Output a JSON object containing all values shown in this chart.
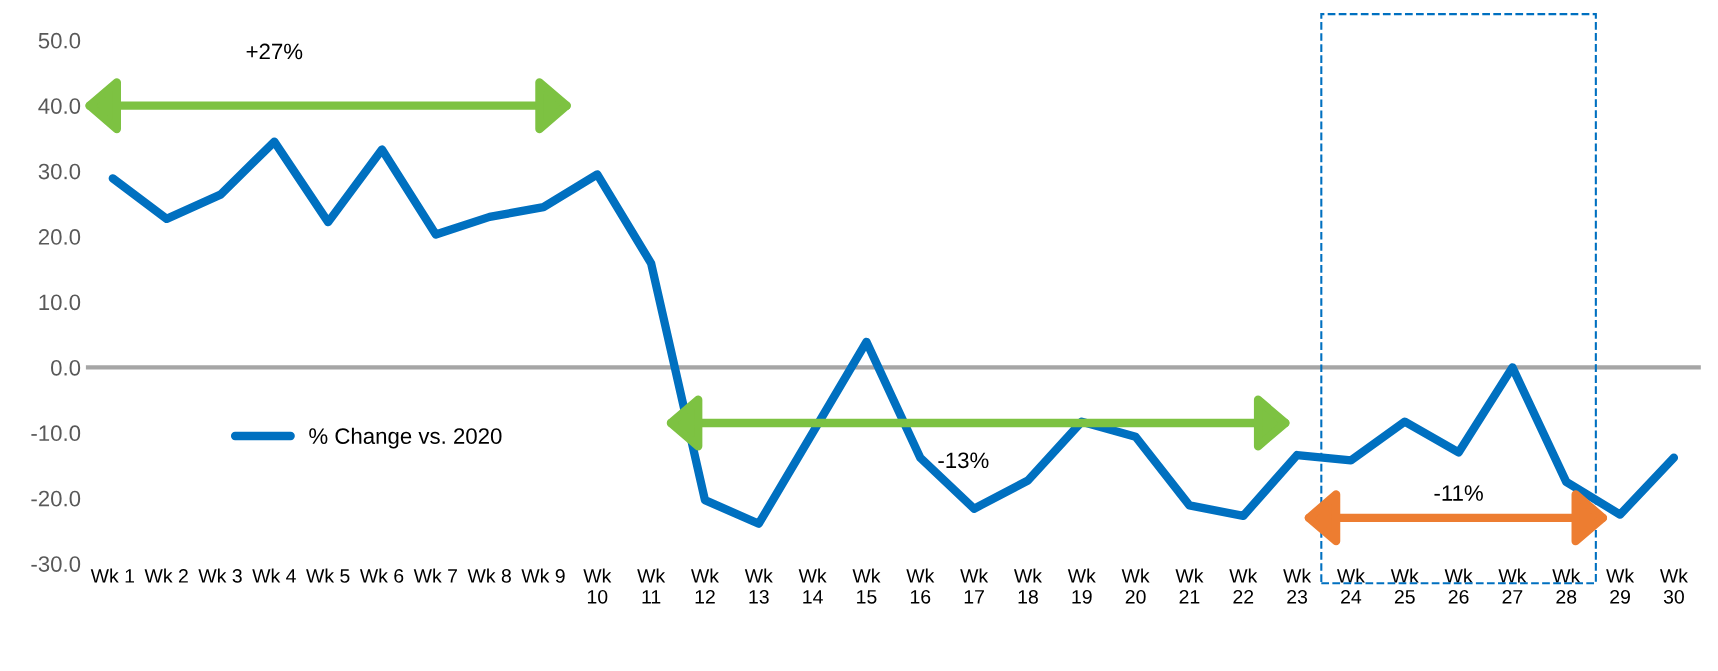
{
  "chart_data": {
    "type": "line",
    "categories": [
      "Wk 1",
      "Wk 2",
      "Wk 3",
      "Wk 4",
      "Wk 5",
      "Wk 6",
      "Wk 7",
      "Wk 8",
      "Wk 9",
      "Wk 10",
      "Wk 11",
      "Wk 12",
      "Wk 13",
      "Wk 14",
      "Wk 15",
      "Wk 16",
      "Wk 17",
      "Wk 18",
      "Wk 19",
      "Wk 20",
      "Wk 21",
      "Wk 22",
      "Wk 23",
      "Wk 24",
      "Wk 25",
      "Wk 26",
      "Wk 27",
      "Wk 28",
      "Wk 29",
      "Wk 30"
    ],
    "series": [
      {
        "name": "% Change vs. 2020",
        "color": "#0070c0",
        "values": [
          28.9,
          22.7,
          26.4,
          34.5,
          22.2,
          33.3,
          20.3,
          23.0,
          24.5,
          29.5,
          15.9,
          -20.3,
          -23.9,
          -10.0,
          3.9,
          -13.8,
          -21.6,
          -17.3,
          -8.3,
          -10.6,
          -21.1,
          -22.7,
          -13.4,
          -14.2,
          -8.3,
          -13.0,
          0.0,
          -17.5,
          -22.5,
          -13.8
        ]
      }
    ],
    "ylim": [
      -30,
      50
    ],
    "yticks": [
      {
        "value": -30,
        "label": "-30.0"
      },
      {
        "value": -20,
        "label": "-20.0"
      },
      {
        "value": -10,
        "label": "-10.0"
      },
      {
        "value": 0,
        "label": "0.0"
      },
      {
        "value": 10,
        "label": "10.0"
      },
      {
        "value": 20,
        "label": "20.0"
      },
      {
        "value": 30,
        "label": "30.0"
      },
      {
        "value": 40,
        "label": "40.0"
      },
      {
        "value": 50,
        "label": "50.0"
      }
    ],
    "ref_lines": [
      {
        "axis": "y",
        "value": 0,
        "color": "#a6a6a6"
      }
    ],
    "annotations": [
      "+27%",
      "-13%",
      "-11%"
    ],
    "legend": "left",
    "marker": "none",
    "line_style": "solid",
    "grid": false
  }
}
